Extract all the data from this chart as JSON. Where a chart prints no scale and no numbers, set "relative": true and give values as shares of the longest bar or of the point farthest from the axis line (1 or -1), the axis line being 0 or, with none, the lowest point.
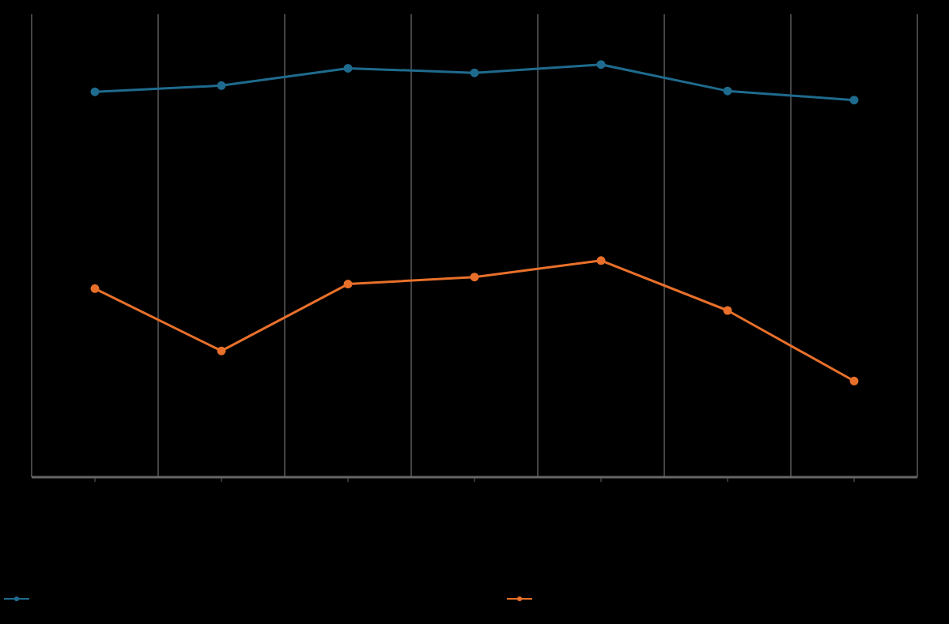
{
  "chart_data": {
    "type": "line",
    "relative": true,
    "categories": [
      null,
      null,
      null,
      null,
      null,
      null,
      null
    ],
    "series": [
      {
        "color": "#1f6b8e",
        "values": [
          0.934,
          0.949,
          0.991,
          0.98,
          1,
          0.936,
          0.914
        ]
      },
      {
        "color": "#e8702a",
        "values": [
          0.457,
          0.306,
          0.468,
          0.485,
          0.525,
          0.404,
          0.233
        ]
      }
    ],
    "grid": "x",
    "marker": "circle",
    "line_style": "solid"
  }
}
